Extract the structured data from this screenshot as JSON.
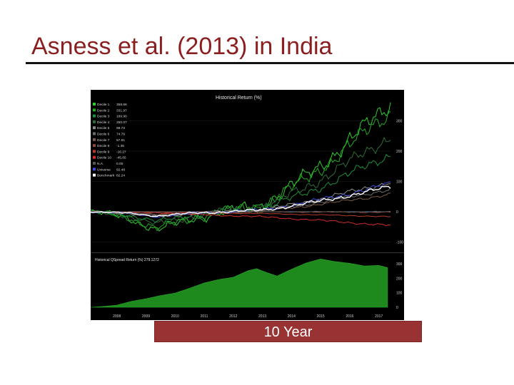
{
  "slide": {
    "title": "Asness et al. (2013) in India",
    "caption": "10 Year"
  },
  "colors": {
    "title": "#8b1f1f",
    "caption_bg": "#993333",
    "chart_bg": "#000000",
    "baseline": "#4a90d9",
    "spread_fill": "#1e8a1e"
  },
  "chart_data": [
    {
      "type": "line",
      "title": "Historical Return (%)",
      "x_ticks": [
        "2008",
        "2009",
        "2010",
        "2011",
        "2012",
        "2013",
        "2014",
        "2015",
        "2016",
        "2017"
      ],
      "xlim": [
        2007.6,
        2017.9
      ],
      "y_ticks": [
        "300",
        "200",
        "100",
        "0",
        "-100"
      ],
      "ylim": [
        -120,
        360
      ],
      "baseline_y": 0,
      "series": [
        {
          "name": "Decile 1",
          "legend_value": "358.66",
          "color": "#2ecc2e",
          "end": 358.66
        },
        {
          "name": "Decile 2",
          "legend_value": "331.97",
          "color": "#23a823",
          "end": 331.97
        },
        {
          "name": "Decile 3",
          "legend_value": "189.90",
          "color": "#1d8f3a",
          "end": 189.9
        },
        {
          "name": "Decile 4",
          "legend_value": "250.07",
          "color": "#2f6b3a",
          "end": 250.07
        },
        {
          "name": "Decile 5",
          "legend_value": "98.73",
          "color": "#8a8a8a",
          "end": 98.73
        },
        {
          "name": "Decile 6",
          "legend_value": "74.76",
          "color": "#6b6b6b",
          "end": 74.76
        },
        {
          "name": "Decile 7",
          "legend_value": "57.91",
          "color": "#7a5a4a",
          "end": 57.91
        },
        {
          "name": "Decile 8",
          "legend_value": "-1.35",
          "color": "#8a4a3a",
          "end": -1.35
        },
        {
          "name": "Decile 9",
          "legend_value": "-16.27",
          "color": "#b03a2a",
          "end": -16.27
        },
        {
          "name": "Decile 10",
          "legend_value": "-45.65",
          "color": "#d42a2a",
          "end": -45.65
        },
        {
          "name": "N.A.",
          "legend_value": "0.00",
          "color": "#555555",
          "end": 0.0
        },
        {
          "name": "Universe",
          "legend_value": "92.48",
          "color": "#3a4ad8",
          "end": 92.48
        },
        {
          "name": "Benchmark",
          "legend_value": "82.24",
          "color": "#ffffff",
          "end": 82.24
        }
      ]
    },
    {
      "type": "area",
      "legend": "Historical QSpread Return (%) 279.1272",
      "y_ticks": [
        "300",
        "200",
        "100",
        "0"
      ],
      "ylim": [
        0,
        360
      ],
      "x": [
        2007.6,
        2008.0,
        2008.5,
        2009.0,
        2009.5,
        2010.0,
        2010.5,
        2011.0,
        2011.5,
        2012.0,
        2012.5,
        2013.0,
        2013.3,
        2013.6,
        2014.0,
        2014.5,
        2015.0,
        2015.5,
        2016.0,
        2016.5,
        2017.0,
        2017.5,
        2017.8
      ],
      "values": [
        0,
        5,
        15,
        40,
        60,
        80,
        100,
        130,
        170,
        190,
        210,
        250,
        270,
        240,
        220,
        260,
        310,
        330,
        320,
        300,
        290,
        285,
        279
      ]
    }
  ]
}
